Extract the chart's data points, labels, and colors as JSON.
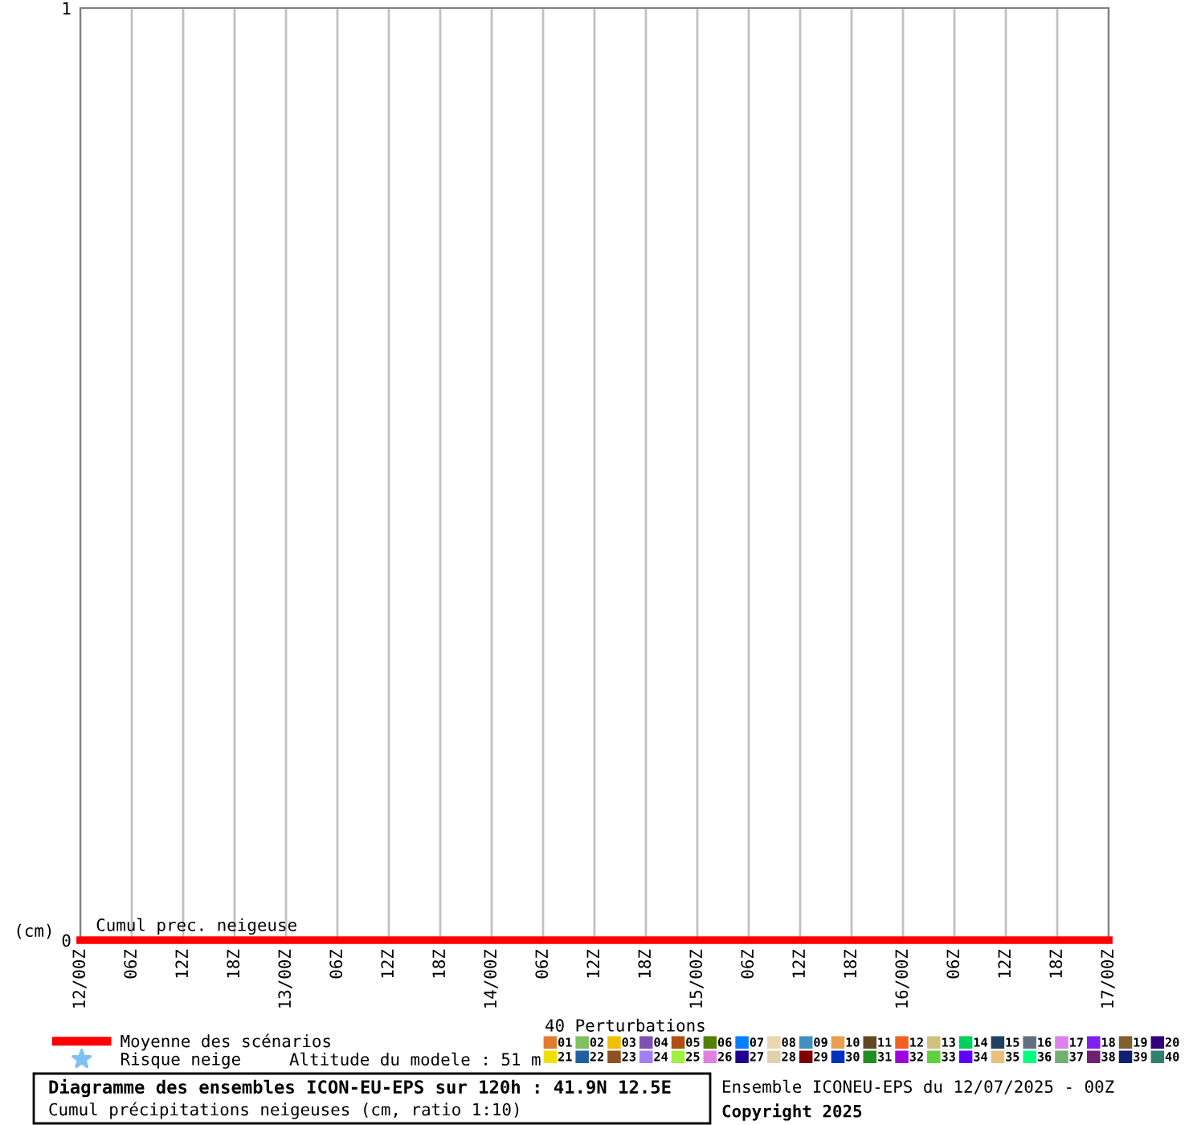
{
  "chart_data": {
    "type": "line",
    "title": "Diagramme des ensembles ICON-EU-EPS sur 120h : 41.9N 12.5E",
    "subtitle": "Cumul précipitations neigeuses (cm, ratio 1:10)",
    "ylabel": "(cm)",
    "legend_title": "40 Perturbations",
    "annotations": [
      "Cumul prec. neigeuse",
      "Altitude du modele : 51 m",
      "Ensemble ICONEU-EPS du 12/07/2025 - 00Z",
      "Copyright 2025"
    ],
    "x": [
      "2025-07-12T00:00",
      "2025-07-12T06:00",
      "2025-07-12T12:00",
      "2025-07-12T18:00",
      "2025-07-13T00:00",
      "2025-07-13T06:00",
      "2025-07-13T12:00",
      "2025-07-13T18:00",
      "2025-07-14T00:00",
      "2025-07-14T06:00",
      "2025-07-14T12:00",
      "2025-07-14T18:00",
      "2025-07-15T00:00",
      "2025-07-15T06:00",
      "2025-07-15T12:00",
      "2025-07-15T18:00",
      "2025-07-16T00:00",
      "2025-07-16T06:00",
      "2025-07-16T12:00",
      "2025-07-16T18:00",
      "2025-07-17T00:00"
    ],
    "xlim": [
      "2025-07-12T00:00",
      "2025-07-17T00:00"
    ],
    "xticks": [
      {
        "value": "2025-07-12T00:00",
        "label": "12/00Z"
      },
      {
        "value": "2025-07-12T06:00",
        "label": "06Z"
      },
      {
        "value": "2025-07-12T12:00",
        "label": "12Z"
      },
      {
        "value": "2025-07-12T18:00",
        "label": "18Z"
      },
      {
        "value": "2025-07-13T00:00",
        "label": "13/00Z"
      },
      {
        "value": "2025-07-13T06:00",
        "label": "06Z"
      },
      {
        "value": "2025-07-13T12:00",
        "label": "12Z"
      },
      {
        "value": "2025-07-13T18:00",
        "label": "18Z"
      },
      {
        "value": "2025-07-14T00:00",
        "label": "14/00Z"
      },
      {
        "value": "2025-07-14T06:00",
        "label": "06Z"
      },
      {
        "value": "2025-07-14T12:00",
        "label": "12Z"
      },
      {
        "value": "2025-07-14T18:00",
        "label": "18Z"
      },
      {
        "value": "2025-07-15T00:00",
        "label": "15/00Z"
      },
      {
        "value": "2025-07-15T06:00",
        "label": "06Z"
      },
      {
        "value": "2025-07-15T12:00",
        "label": "12Z"
      },
      {
        "value": "2025-07-15T18:00",
        "label": "18Z"
      },
      {
        "value": "2025-07-16T00:00",
        "label": "16/00Z"
      },
      {
        "value": "2025-07-16T06:00",
        "label": "06Z"
      },
      {
        "value": "2025-07-16T12:00",
        "label": "12Z"
      },
      {
        "value": "2025-07-16T18:00",
        "label": "18Z"
      },
      {
        "value": "2025-07-17T00:00",
        "label": "17/00Z"
      }
    ],
    "ylim": [
      0,
      1
    ],
    "yticks": [
      0,
      1
    ],
    "grid": "x",
    "legend": "bottom",
    "series": [
      {
        "name": "Moyenne des scénarios",
        "type": "line",
        "color": "#ff0000",
        "values": [
          0,
          0,
          0,
          0,
          0,
          0,
          0,
          0,
          0,
          0,
          0,
          0,
          0,
          0,
          0,
          0,
          0,
          0,
          0,
          0,
          0
        ]
      },
      {
        "name": "Risque neige",
        "type": "scatter",
        "marker": "star",
        "color": "#80c0f0",
        "values": [
          null,
          null,
          null,
          null,
          null,
          null,
          null,
          null,
          null,
          null,
          null,
          null,
          null,
          null,
          null,
          null,
          null,
          null,
          null,
          null,
          null
        ]
      },
      {
        "name": "01",
        "color": "#e07b30",
        "values": [
          null,
          null,
          null,
          null,
          null,
          null,
          null,
          null,
          null,
          null,
          null,
          null,
          null,
          null,
          null,
          null,
          null,
          null,
          null,
          null,
          null
        ]
      },
      {
        "name": "02",
        "color": "#80c060",
        "values": [
          null,
          null,
          null,
          null,
          null,
          null,
          null,
          null,
          null,
          null,
          null,
          null,
          null,
          null,
          null,
          null,
          null,
          null,
          null,
          null,
          null
        ]
      },
      {
        "name": "03",
        "color": "#f0c000",
        "values": [
          null,
          null,
          null,
          null,
          null,
          null,
          null,
          null,
          null,
          null,
          null,
          null,
          null,
          null,
          null,
          null,
          null,
          null,
          null,
          null,
          null
        ]
      },
      {
        "name": "04",
        "color": "#8050b0",
        "values": [
          null,
          null,
          null,
          null,
          null,
          null,
          null,
          null,
          null,
          null,
          null,
          null,
          null,
          null,
          null,
          null,
          null,
          null,
          null,
          null,
          null
        ]
      },
      {
        "name": "05",
        "color": "#b05010",
        "values": [
          null,
          null,
          null,
          null,
          null,
          null,
          null,
          null,
          null,
          null,
          null,
          null,
          null,
          null,
          null,
          null,
          null,
          null,
          null,
          null,
          null
        ]
      },
      {
        "name": "06",
        "color": "#508000",
        "values": [
          null,
          null,
          null,
          null,
          null,
          null,
          null,
          null,
          null,
          null,
          null,
          null,
          null,
          null,
          null,
          null,
          null,
          null,
          null,
          null,
          null
        ]
      },
      {
        "name": "07",
        "color": "#0080ff",
        "values": [
          null,
          null,
          null,
          null,
          null,
          null,
          null,
          null,
          null,
          null,
          null,
          null,
          null,
          null,
          null,
          null,
          null,
          null,
          null,
          null,
          null
        ]
      },
      {
        "name": "08",
        "color": "#e8d8b0",
        "values": [
          null,
          null,
          null,
          null,
          null,
          null,
          null,
          null,
          null,
          null,
          null,
          null,
          null,
          null,
          null,
          null,
          null,
          null,
          null,
          null,
          null
        ]
      },
      {
        "name": "09",
        "color": "#4090c0",
        "values": [
          null,
          null,
          null,
          null,
          null,
          null,
          null,
          null,
          null,
          null,
          null,
          null,
          null,
          null,
          null,
          null,
          null,
          null,
          null,
          null,
          null
        ]
      },
      {
        "name": "10",
        "color": "#e8a050",
        "values": [
          null,
          null,
          null,
          null,
          null,
          null,
          null,
          null,
          null,
          null,
          null,
          null,
          null,
          null,
          null,
          null,
          null,
          null,
          null,
          null,
          null
        ]
      },
      {
        "name": "11",
        "color": "#604820",
        "values": [
          null,
          null,
          null,
          null,
          null,
          null,
          null,
          null,
          null,
          null,
          null,
          null,
          null,
          null,
          null,
          null,
          null,
          null,
          null,
          null,
          null
        ]
      },
      {
        "name": "12",
        "color": "#f06020",
        "values": [
          null,
          null,
          null,
          null,
          null,
          null,
          null,
          null,
          null,
          null,
          null,
          null,
          null,
          null,
          null,
          null,
          null,
          null,
          null,
          null,
          null
        ]
      },
      {
        "name": "13",
        "color": "#d0c080",
        "values": [
          null,
          null,
          null,
          null,
          null,
          null,
          null,
          null,
          null,
          null,
          null,
          null,
          null,
          null,
          null,
          null,
          null,
          null,
          null,
          null,
          null
        ]
      },
      {
        "name": "14",
        "color": "#00d060",
        "values": [
          null,
          null,
          null,
          null,
          null,
          null,
          null,
          null,
          null,
          null,
          null,
          null,
          null,
          null,
          null,
          null,
          null,
          null,
          null,
          null,
          null
        ]
      },
      {
        "name": "15",
        "color": "#204060",
        "values": [
          null,
          null,
          null,
          null,
          null,
          null,
          null,
          null,
          null,
          null,
          null,
          null,
          null,
          null,
          null,
          null,
          null,
          null,
          null,
          null,
          null
        ]
      },
      {
        "name": "16",
        "color": "#607080",
        "values": [
          null,
          null,
          null,
          null,
          null,
          null,
          null,
          null,
          null,
          null,
          null,
          null,
          null,
          null,
          null,
          null,
          null,
          null,
          null,
          null,
          null
        ]
      },
      {
        "name": "17",
        "color": "#e080f0",
        "values": [
          null,
          null,
          null,
          null,
          null,
          null,
          null,
          null,
          null,
          null,
          null,
          null,
          null,
          null,
          null,
          null,
          null,
          null,
          null,
          null,
          null
        ]
      },
      {
        "name": "18",
        "color": "#8020f0",
        "values": [
          null,
          null,
          null,
          null,
          null,
          null,
          null,
          null,
          null,
          null,
          null,
          null,
          null,
          null,
          null,
          null,
          null,
          null,
          null,
          null,
          null
        ]
      },
      {
        "name": "19",
        "color": "#806030",
        "values": [
          null,
          null,
          null,
          null,
          null,
          null,
          null,
          null,
          null,
          null,
          null,
          null,
          null,
          null,
          null,
          null,
          null,
          null,
          null,
          null,
          null
        ]
      },
      {
        "name": "20",
        "color": "#300080",
        "values": [
          null,
          null,
          null,
          null,
          null,
          null,
          null,
          null,
          null,
          null,
          null,
          null,
          null,
          null,
          null,
          null,
          null,
          null,
          null,
          null,
          null
        ]
      },
      {
        "name": "21",
        "color": "#f0e000",
        "values": [
          null,
          null,
          null,
          null,
          null,
          null,
          null,
          null,
          null,
          null,
          null,
          null,
          null,
          null,
          null,
          null,
          null,
          null,
          null,
          null,
          null
        ]
      },
      {
        "name": "22",
        "color": "#2060a0",
        "values": [
          null,
          null,
          null,
          null,
          null,
          null,
          null,
          null,
          null,
          null,
          null,
          null,
          null,
          null,
          null,
          null,
          null,
          null,
          null,
          null,
          null
        ]
      },
      {
        "name": "23",
        "color": "#905020",
        "values": [
          null,
          null,
          null,
          null,
          null,
          null,
          null,
          null,
          null,
          null,
          null,
          null,
          null,
          null,
          null,
          null,
          null,
          null,
          null,
          null,
          null
        ]
      },
      {
        "name": "24",
        "color": "#a080f0",
        "values": [
          null,
          null,
          null,
          null,
          null,
          null,
          null,
          null,
          null,
          null,
          null,
          null,
          null,
          null,
          null,
          null,
          null,
          null,
          null,
          null,
          null
        ]
      },
      {
        "name": "25",
        "color": "#a0f040",
        "values": [
          null,
          null,
          null,
          null,
          null,
          null,
          null,
          null,
          null,
          null,
          null,
          null,
          null,
          null,
          null,
          null,
          null,
          null,
          null,
          null,
          null
        ]
      },
      {
        "name": "26",
        "color": "#e080e0",
        "values": [
          null,
          null,
          null,
          null,
          null,
          null,
          null,
          null,
          null,
          null,
          null,
          null,
          null,
          null,
          null,
          null,
          null,
          null,
          null,
          null,
          null
        ]
      },
      {
        "name": "27",
        "color": "#200090",
        "values": [
          null,
          null,
          null,
          null,
          null,
          null,
          null,
          null,
          null,
          null,
          null,
          null,
          null,
          null,
          null,
          null,
          null,
          null,
          null,
          null,
          null
        ]
      },
      {
        "name": "28",
        "color": "#e0d0b0",
        "values": [
          null,
          null,
          null,
          null,
          null,
          null,
          null,
          null,
          null,
          null,
          null,
          null,
          null,
          null,
          null,
          null,
          null,
          null,
          null,
          null,
          null
        ]
      },
      {
        "name": "29",
        "color": "#800000",
        "values": [
          null,
          null,
          null,
          null,
          null,
          null,
          null,
          null,
          null,
          null,
          null,
          null,
          null,
          null,
          null,
          null,
          null,
          null,
          null,
          null,
          null
        ]
      },
      {
        "name": "30",
        "color": "#0030c0",
        "values": [
          null,
          null,
          null,
          null,
          null,
          null,
          null,
          null,
          null,
          null,
          null,
          null,
          null,
          null,
          null,
          null,
          null,
          null,
          null,
          null,
          null
        ]
      },
      {
        "name": "31",
        "color": "#209020",
        "values": [
          null,
          null,
          null,
          null,
          null,
          null,
          null,
          null,
          null,
          null,
          null,
          null,
          null,
          null,
          null,
          null,
          null,
          null,
          null,
          null,
          null
        ]
      },
      {
        "name": "32",
        "color": "#a000e0",
        "values": [
          null,
          null,
          null,
          null,
          null,
          null,
          null,
          null,
          null,
          null,
          null,
          null,
          null,
          null,
          null,
          null,
          null,
          null,
          null,
          null,
          null
        ]
      },
      {
        "name": "33",
        "color": "#60d040",
        "values": [
          null,
          null,
          null,
          null,
          null,
          null,
          null,
          null,
          null,
          null,
          null,
          null,
          null,
          null,
          null,
          null,
          null,
          null,
          null,
          null,
          null
        ]
      },
      {
        "name": "34",
        "color": "#6000ff",
        "values": [
          null,
          null,
          null,
          null,
          null,
          null,
          null,
          null,
          null,
          null,
          null,
          null,
          null,
          null,
          null,
          null,
          null,
          null,
          null,
          null,
          null
        ]
      },
      {
        "name": "35",
        "color": "#e8c080",
        "values": [
          null,
          null,
          null,
          null,
          null,
          null,
          null,
          null,
          null,
          null,
          null,
          null,
          null,
          null,
          null,
          null,
          null,
          null,
          null,
          null,
          null
        ]
      },
      {
        "name": "36",
        "color": "#00ff80",
        "values": [
          null,
          null,
          null,
          null,
          null,
          null,
          null,
          null,
          null,
          null,
          null,
          null,
          null,
          null,
          null,
          null,
          null,
          null,
          null,
          null,
          null
        ]
      },
      {
        "name": "37",
        "color": "#70b070",
        "values": [
          null,
          null,
          null,
          null,
          null,
          null,
          null,
          null,
          null,
          null,
          null,
          null,
          null,
          null,
          null,
          null,
          null,
          null,
          null,
          null,
          null
        ]
      },
      {
        "name": "38",
        "color": "#702070",
        "values": [
          null,
          null,
          null,
          null,
          null,
          null,
          null,
          null,
          null,
          null,
          null,
          null,
          null,
          null,
          null,
          null,
          null,
          null,
          null,
          null,
          null
        ]
      },
      {
        "name": "39",
        "color": "#102070",
        "values": [
          null,
          null,
          null,
          null,
          null,
          null,
          null,
          null,
          null,
          null,
          null,
          null,
          null,
          null,
          null,
          null,
          null,
          null,
          null,
          null,
          null
        ]
      },
      {
        "name": "40",
        "color": "#308070",
        "values": [
          null,
          null,
          null,
          null,
          null,
          null,
          null,
          null,
          null,
          null,
          null,
          null,
          null,
          null,
          null,
          null,
          null,
          null,
          null,
          null,
          null
        ]
      }
    ]
  }
}
